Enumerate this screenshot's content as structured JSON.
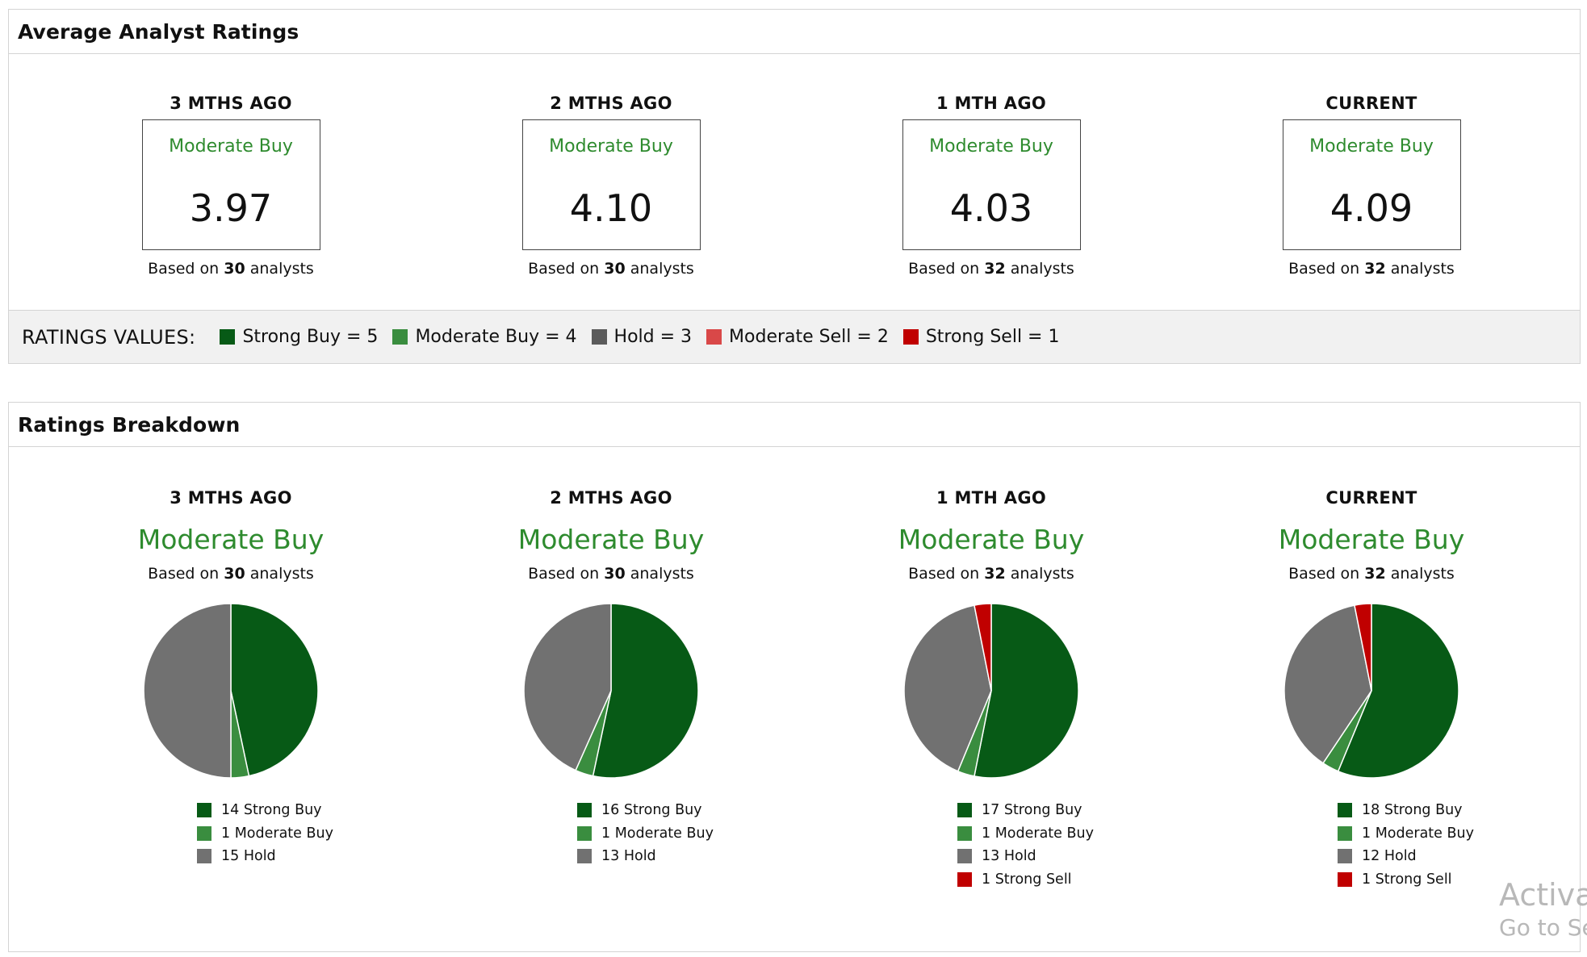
{
  "average_panel": {
    "title": "Average Analyst Ratings",
    "columns": [
      {
        "period": "3 MTHS AGO",
        "rating": "Moderate Buy",
        "score": "3.97",
        "based_prefix": "Based on",
        "analysts": "30",
        "based_suffix": "analysts"
      },
      {
        "period": "2 MTHS AGO",
        "rating": "Moderate Buy",
        "score": "4.10",
        "based_prefix": "Based on",
        "analysts": "30",
        "based_suffix": "analysts"
      },
      {
        "period": "1 MTH AGO",
        "rating": "Moderate Buy",
        "score": "4.03",
        "based_prefix": "Based on",
        "analysts": "32",
        "based_suffix": "analysts"
      },
      {
        "period": "CURRENT",
        "rating": "Moderate Buy",
        "score": "4.09",
        "based_prefix": "Based on",
        "analysts": "32",
        "based_suffix": "analysts"
      }
    ],
    "legend": {
      "title": "RATINGS VALUES:",
      "items": [
        {
          "label": "Strong Buy = 5",
          "color": "#075a16"
        },
        {
          "label": "Moderate Buy = 4",
          "color": "#3a8d3f"
        },
        {
          "label": "Hold = 3",
          "color": "#5b5b5b"
        },
        {
          "label": "Moderate Sell = 2",
          "color": "#d94848"
        },
        {
          "label": "Strong Sell = 1",
          "color": "#c00000"
        }
      ]
    }
  },
  "breakdown_panel": {
    "title": "Ratings Breakdown",
    "columns": [
      {
        "period": "3 MTHS AGO",
        "rating": "Moderate Buy",
        "based_prefix": "Based on",
        "analysts": "30",
        "based_suffix": "analysts",
        "legend": [
          "14 Strong Buy",
          "1 Moderate Buy",
          "15 Hold"
        ]
      },
      {
        "period": "2 MTHS AGO",
        "rating": "Moderate Buy",
        "based_prefix": "Based on",
        "analysts": "30",
        "based_suffix": "analysts",
        "legend": [
          "16 Strong Buy",
          "1 Moderate Buy",
          "13 Hold"
        ]
      },
      {
        "period": "1 MTH AGO",
        "rating": "Moderate Buy",
        "based_prefix": "Based on",
        "analysts": "32",
        "based_suffix": "analysts",
        "legend": [
          "17 Strong Buy",
          "1 Moderate Buy",
          "13 Hold",
          "1 Strong Sell"
        ]
      },
      {
        "period": "CURRENT",
        "rating": "Moderate Buy",
        "based_prefix": "Based on",
        "analysts": "32",
        "based_suffix": "analysts",
        "legend": [
          "18 Strong Buy",
          "1 Moderate Buy",
          "12 Hold",
          "1 Strong Sell"
        ]
      }
    ]
  },
  "colors": {
    "strong_buy": "#075a16",
    "moderate_buy": "#3a8d3f",
    "hold": "#717171",
    "strong_sell": "#c00000",
    "accent_text": "#2e8b2e"
  },
  "chart_data": [
    {
      "type": "pie",
      "categories": [
        "Strong Buy",
        "Moderate Buy",
        "Hold",
        "Strong Sell"
      ],
      "values": [
        14,
        1,
        15,
        0
      ]
    },
    {
      "type": "pie",
      "categories": [
        "Strong Buy",
        "Moderate Buy",
        "Hold",
        "Strong Sell"
      ],
      "values": [
        16,
        1,
        13,
        0
      ]
    },
    {
      "type": "pie",
      "categories": [
        "Strong Buy",
        "Moderate Buy",
        "Hold",
        "Strong Sell"
      ],
      "values": [
        17,
        1,
        13,
        1
      ]
    },
    {
      "type": "pie",
      "categories": [
        "Strong Buy",
        "Moderate Buy",
        "Hold",
        "Strong Sell"
      ],
      "values": [
        18,
        1,
        12,
        1
      ]
    }
  ],
  "watermark": {
    "line1": "Activa",
    "line2": "Go to Se"
  }
}
